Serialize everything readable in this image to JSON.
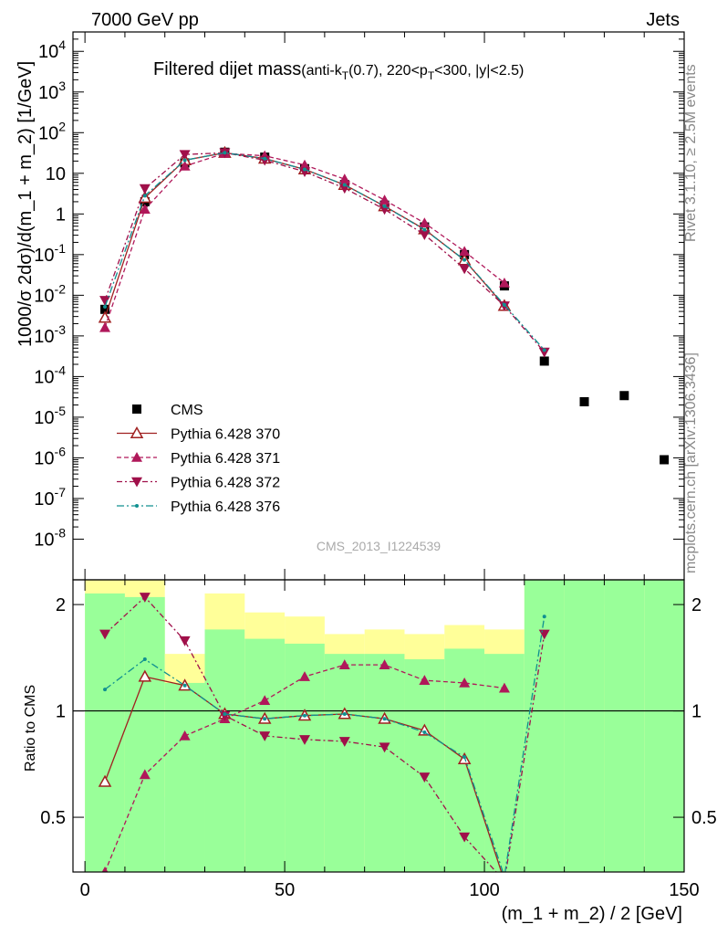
{
  "header": {
    "left": "7000 GeV pp",
    "right": "Jets"
  },
  "title": {
    "main": "Filtered dijet mass",
    "sub_prefix": "(anti-k",
    "sub_T1": "T",
    "sub_mid": "(0.7), 220<p",
    "sub_T2": "T",
    "sub_suffix": "<300, |y|<2.5)"
  },
  "side_labels": {
    "rivet": "Rivet 3.1.10, ≥ 2.5M events",
    "mcplots": "mcplots.cern.ch [arXiv:1306.3436]"
  },
  "analysis_id": "CMS_2013_I1224539",
  "colors": {
    "data": "#000000",
    "p370": "#a02020",
    "p371": "#b0185a",
    "p372": "#a0104a",
    "p376": "#109090",
    "band_inner": "#99ff99",
    "band_outer": "#ffff99"
  },
  "chart_data": [
    {
      "type": "scatter",
      "panel": "main",
      "ylabel": "1000/σ 2dσ)/d(m_1 + m_2) [1/GeV]",
      "yscale": "log",
      "ylim": [
        1e-09,
        30000
      ],
      "xlim": [
        -3,
        150
      ],
      "y_ticks": [
        "10^-8",
        "10^-7",
        "10^-6",
        "10^-5",
        "10^-4",
        "10^-3",
        "10^-2",
        "10^-1",
        "1",
        "10",
        "10^2",
        "10^3",
        "10^4"
      ],
      "legend": {
        "position": "left",
        "entries": [
          "CMS",
          "Pythia 6.428 370",
          "Pythia 6.428 371",
          "Pythia 6.428 372",
          "Pythia 6.428 376"
        ]
      },
      "x": [
        5,
        15,
        25,
        35,
        45,
        55,
        65,
        75,
        85,
        95,
        105,
        115,
        125,
        135,
        145
      ],
      "series": [
        {
          "name": "CMS",
          "style": "square",
          "y": [
            0.0045,
            2.0,
            18,
            33,
            25,
            13,
            5.3,
            1.65,
            0.48,
            0.1,
            0.017,
            0.00024,
            2.4e-05,
            3.4e-05,
            9e-07
          ]
        },
        {
          "name": "Pythia 6.428 370",
          "style": "open-triangle",
          "y": [
            0.0028,
            2.5,
            21,
            32,
            23,
            12.5,
            5.2,
            1.55,
            0.42,
            0.073,
            0.0055,
            null,
            null,
            null,
            null
          ]
        },
        {
          "name": "Pythia 6.428 371",
          "style": "triangle-up",
          "y": [
            0.0016,
            1.3,
            15,
            31,
            27,
            16,
            7.2,
            2.2,
            0.6,
            0.12,
            0.02,
            null,
            null,
            null,
            null
          ]
        },
        {
          "name": "Pythia 6.428 372",
          "style": "triangle-down",
          "y": [
            0.0075,
            4.2,
            29,
            32,
            21,
            11,
            4.3,
            1.3,
            0.31,
            0.045,
            0.0055,
            0.0004,
            null,
            null,
            null
          ]
        },
        {
          "name": "Pythia 6.428 376",
          "style": "dot",
          "y": [
            0.0052,
            2.8,
            21,
            32,
            23,
            12.5,
            5.2,
            1.55,
            0.41,
            0.074,
            0.0058,
            0.00045,
            null,
            null,
            null
          ]
        }
      ]
    },
    {
      "type": "line",
      "panel": "ratio",
      "xlabel": "(m_1 + m_2) / 2 [GeV]",
      "ylabel": "Ratio to CMS",
      "yscale": "log",
      "ylim": [
        0.35,
        2.35
      ],
      "xlim": [
        -3,
        150
      ],
      "x_ticks": [
        0,
        50,
        100,
        150
      ],
      "y_ticks": [
        0.5,
        1,
        2
      ],
      "bands": {
        "edges": [
          0,
          10,
          20,
          30,
          40,
          50,
          60,
          70,
          80,
          90,
          100,
          110,
          120,
          130,
          140,
          150
        ],
        "inner": [
          [
            0.35,
            2.15
          ],
          [
            0.35,
            2.1
          ],
          [
            0.35,
            1.2
          ],
          [
            0.35,
            1.7
          ],
          [
            0.35,
            1.6
          ],
          [
            0.35,
            1.55
          ],
          [
            0.35,
            1.45
          ],
          [
            0.35,
            1.45
          ],
          [
            0.35,
            1.4
          ],
          [
            0.35,
            1.5
          ],
          [
            0.35,
            1.45
          ],
          [
            0.35,
            2.35
          ],
          [
            0.35,
            2.35
          ],
          [
            0.35,
            2.35
          ],
          [
            0.35,
            2.35
          ]
        ],
        "outer": [
          [
            0.35,
            2.35
          ],
          [
            0.35,
            2.35
          ],
          [
            0.57,
            1.45
          ],
          [
            0.35,
            2.15
          ],
          [
            0.35,
            1.9
          ],
          [
            0.35,
            1.85
          ],
          [
            0.35,
            1.65
          ],
          [
            0.35,
            1.7
          ],
          [
            0.35,
            1.65
          ],
          [
            0.35,
            1.75
          ],
          [
            0.35,
            1.7
          ],
          [
            0.35,
            2.35
          ],
          [
            0.37,
            2.2
          ],
          [
            0.37,
            2.0
          ],
          [
            0.35,
            2.35
          ]
        ]
      },
      "x": [
        5,
        15,
        25,
        35,
        45,
        55,
        65,
        75,
        85,
        95,
        105,
        115
      ],
      "series": [
        {
          "name": "Pythia 6.428 370",
          "y": [
            0.63,
            1.25,
            1.18,
            0.98,
            0.95,
            0.97,
            0.98,
            0.95,
            0.88,
            0.73,
            0.33,
            null
          ]
        },
        {
          "name": "Pythia 6.428 371",
          "y": [
            0.35,
            0.66,
            0.85,
            0.95,
            1.07,
            1.25,
            1.35,
            1.35,
            1.22,
            1.2,
            1.16,
            null
          ]
        },
        {
          "name": "Pythia 6.428 372",
          "y": [
            1.65,
            2.1,
            1.58,
            0.97,
            0.85,
            0.83,
            0.82,
            0.79,
            0.65,
            0.44,
            0.33,
            1.65
          ]
        },
        {
          "name": "Pythia 6.428 376",
          "y": [
            1.15,
            1.4,
            1.18,
            0.98,
            0.95,
            0.97,
            0.98,
            0.95,
            0.87,
            0.74,
            0.34,
            1.85
          ]
        }
      ]
    }
  ]
}
